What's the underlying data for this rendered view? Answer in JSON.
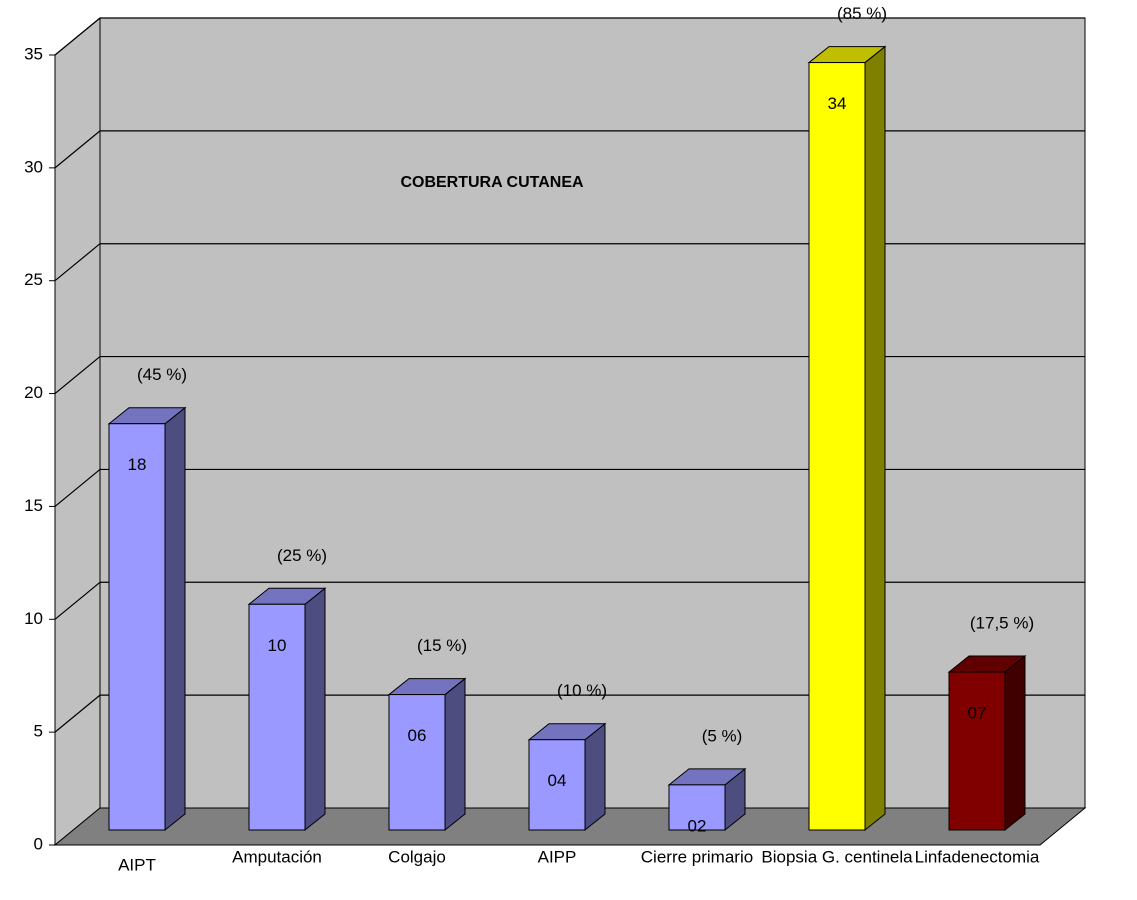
{
  "chart_data": {
    "type": "bar3d",
    "annotation": "COBERTURA CUTANEA",
    "categories": [
      "AIPT",
      "Amputación",
      "Colgajo",
      "AIPP",
      "Cierre primario",
      "Biopsia G. centinela",
      "Linfadenectomia"
    ],
    "values": [
      18,
      10,
      6,
      4,
      2,
      34,
      7
    ],
    "value_labels": [
      "18",
      "10",
      "06",
      "04",
      "02",
      "34",
      "07"
    ],
    "percent_labels": [
      "(45 %)",
      "(25 %)",
      "(15 %)",
      "(10 %)",
      "(5 %)",
      "(85 %)",
      "(17,5 %)"
    ],
    "colors": [
      "#9999ff",
      "#9999ff",
      "#9999ff",
      "#9999ff",
      "#9999ff",
      "#ffff00",
      "#800000"
    ],
    "ylim": [
      0,
      35
    ],
    "yticks": [
      0,
      5,
      10,
      15,
      20,
      25,
      30,
      35
    ],
    "grid": true
  }
}
